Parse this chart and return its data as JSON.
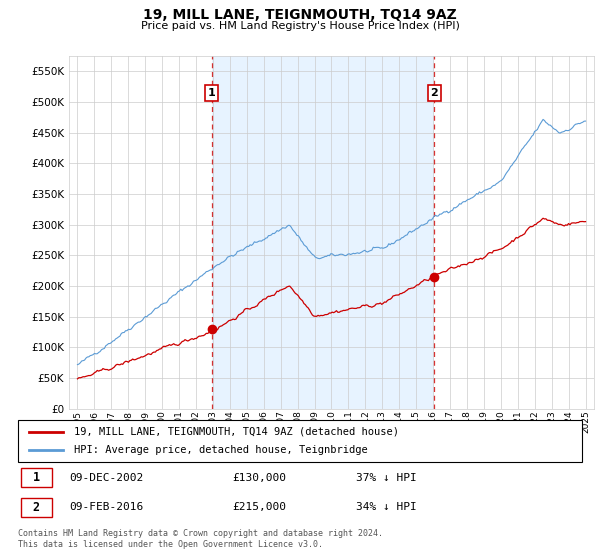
{
  "title": "19, MILL LANE, TEIGNMOUTH, TQ14 9AZ",
  "subtitle": "Price paid vs. HM Land Registry's House Price Index (HPI)",
  "legend_line1": "19, MILL LANE, TEIGNMOUTH, TQ14 9AZ (detached house)",
  "legend_line2": "HPI: Average price, detached house, Teignbridge",
  "footnote": "Contains HM Land Registry data © Crown copyright and database right 2024.\nThis data is licensed under the Open Government Licence v3.0.",
  "sale1_label": "1",
  "sale1_date": "09-DEC-2002",
  "sale1_price": "£130,000",
  "sale1_hpi": "37% ↓ HPI",
  "sale2_label": "2",
  "sale2_date": "09-FEB-2016",
  "sale2_price": "£215,000",
  "sale2_hpi": "34% ↓ HPI",
  "sale1_x": 2002.92,
  "sale1_y": 130000,
  "sale2_x": 2016.08,
  "sale2_y": 215000,
  "hpi_color": "#5b9bd5",
  "hpi_fill_color": "#ddeeff",
  "price_color": "#cc0000",
  "ylim": [
    0,
    575000
  ],
  "xlim_start": 1994.5,
  "xlim_end": 2025.5,
  "yticks": [
    0,
    50000,
    100000,
    150000,
    200000,
    250000,
    300000,
    350000,
    400000,
    450000,
    500000,
    550000
  ],
  "xticks": [
    1995,
    1996,
    1997,
    1998,
    1999,
    2000,
    2001,
    2002,
    2003,
    2004,
    2005,
    2006,
    2007,
    2008,
    2009,
    2010,
    2011,
    2012,
    2013,
    2014,
    2015,
    2016,
    2017,
    2018,
    2019,
    2020,
    2021,
    2022,
    2023,
    2024,
    2025
  ],
  "bg_color": "#f0f8ff"
}
